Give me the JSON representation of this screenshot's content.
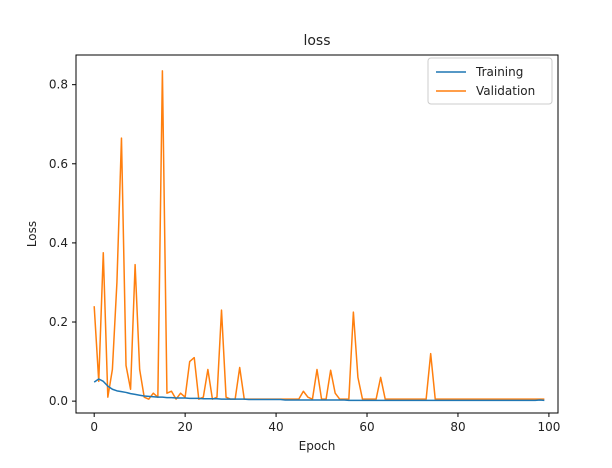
{
  "chart_data": {
    "type": "line",
    "title": "loss",
    "xlabel": "Epoch",
    "ylabel": "Loss",
    "xlim": [
      -4,
      102
    ],
    "ylim": [
      -0.03,
      0.875
    ],
    "xticks": [
      0,
      20,
      40,
      60,
      80,
      100
    ],
    "yticks": [
      0.0,
      0.2,
      0.4,
      0.6,
      0.8
    ],
    "xtick_labels": [
      "0",
      "20",
      "40",
      "60",
      "80",
      "100"
    ],
    "ytick_labels": [
      "0.0",
      "0.2",
      "0.4",
      "0.6",
      "0.8"
    ],
    "grid": false,
    "legend_position": "top-right",
    "series": [
      {
        "name": "Training",
        "color": "#1f77b4",
        "x": [
          0,
          1,
          2,
          3,
          4,
          5,
          6,
          7,
          8,
          9,
          10,
          11,
          12,
          13,
          14,
          15,
          16,
          17,
          18,
          19,
          20,
          21,
          22,
          23,
          24,
          25,
          26,
          27,
          28,
          29,
          30,
          31,
          32,
          33,
          34,
          35,
          36,
          37,
          38,
          39,
          40,
          41,
          42,
          43,
          44,
          45,
          46,
          47,
          48,
          49,
          50,
          51,
          52,
          53,
          54,
          55,
          56,
          57,
          58,
          59,
          60,
          61,
          62,
          63,
          64,
          65,
          66,
          67,
          68,
          69,
          70,
          71,
          72,
          73,
          74,
          75,
          76,
          77,
          78,
          79,
          80,
          81,
          82,
          83,
          84,
          85,
          86,
          87,
          88,
          89,
          90,
          91,
          92,
          93,
          94,
          95,
          96,
          97,
          98,
          99
        ],
        "values": [
          0.048,
          0.056,
          0.05,
          0.038,
          0.03,
          0.026,
          0.024,
          0.022,
          0.019,
          0.017,
          0.015,
          0.013,
          0.012,
          0.011,
          0.01,
          0.01,
          0.009,
          0.009,
          0.008,
          0.008,
          0.008,
          0.007,
          0.007,
          0.007,
          0.006,
          0.006,
          0.006,
          0.006,
          0.005,
          0.005,
          0.005,
          0.005,
          0.005,
          0.005,
          0.004,
          0.004,
          0.004,
          0.004,
          0.004,
          0.004,
          0.004,
          0.004,
          0.003,
          0.003,
          0.003,
          0.003,
          0.003,
          0.003,
          0.003,
          0.003,
          0.003,
          0.003,
          0.003,
          0.003,
          0.003,
          0.003,
          0.002,
          0.002,
          0.002,
          0.002,
          0.002,
          0.002,
          0.002,
          0.002,
          0.002,
          0.002,
          0.002,
          0.002,
          0.002,
          0.002,
          0.002,
          0.002,
          0.002,
          0.002,
          0.002,
          0.002,
          0.002,
          0.002,
          0.002,
          0.002,
          0.002,
          0.002,
          0.002,
          0.002,
          0.002,
          0.002,
          0.002,
          0.002,
          0.002,
          0.002,
          0.002,
          0.002,
          0.002,
          0.002,
          0.002,
          0.002,
          0.002,
          0.002,
          0.003,
          0.002
        ]
      },
      {
        "name": "Validation",
        "color": "#ff7f0e",
        "x": [
          0,
          1,
          2,
          3,
          4,
          5,
          6,
          7,
          8,
          9,
          10,
          11,
          12,
          13,
          14,
          15,
          16,
          17,
          18,
          19,
          20,
          21,
          22,
          23,
          24,
          25,
          26,
          27,
          28,
          29,
          30,
          31,
          32,
          33,
          34,
          35,
          36,
          37,
          38,
          39,
          40,
          41,
          42,
          43,
          44,
          45,
          46,
          47,
          48,
          49,
          50,
          51,
          52,
          53,
          54,
          55,
          56,
          57,
          58,
          59,
          60,
          61,
          62,
          63,
          64,
          65,
          66,
          67,
          68,
          69,
          70,
          71,
          72,
          73,
          74,
          75,
          76,
          77,
          78,
          79,
          80,
          81,
          82,
          83,
          84,
          85,
          86,
          87,
          88,
          89,
          90,
          91,
          92,
          93,
          94,
          95,
          96,
          97,
          98,
          99
        ],
        "values": [
          0.24,
          0.05,
          0.375,
          0.01,
          0.08,
          0.3,
          0.665,
          0.09,
          0.03,
          0.345,
          0.08,
          0.01,
          0.005,
          0.02,
          0.01,
          0.835,
          0.02,
          0.025,
          0.005,
          0.02,
          0.01,
          0.1,
          0.11,
          0.005,
          0.01,
          0.08,
          0.005,
          0.01,
          0.23,
          0.01,
          0.005,
          0.005,
          0.085,
          0.005,
          0.005,
          0.005,
          0.005,
          0.005,
          0.005,
          0.005,
          0.005,
          0.005,
          0.005,
          0.005,
          0.005,
          0.005,
          0.025,
          0.01,
          0.005,
          0.08,
          0.005,
          0.005,
          0.078,
          0.02,
          0.005,
          0.005,
          0.005,
          0.225,
          0.06,
          0.005,
          0.005,
          0.005,
          0.005,
          0.06,
          0.005,
          0.005,
          0.005,
          0.005,
          0.005,
          0.005,
          0.005,
          0.005,
          0.005,
          0.005,
          0.12,
          0.005,
          0.005,
          0.005,
          0.005,
          0.005,
          0.005,
          0.005,
          0.005,
          0.005,
          0.005,
          0.005,
          0.005,
          0.005,
          0.005,
          0.005,
          0.005,
          0.005,
          0.005,
          0.005,
          0.005,
          0.005,
          0.005,
          0.005,
          0.005,
          0.005
        ]
      }
    ]
  }
}
